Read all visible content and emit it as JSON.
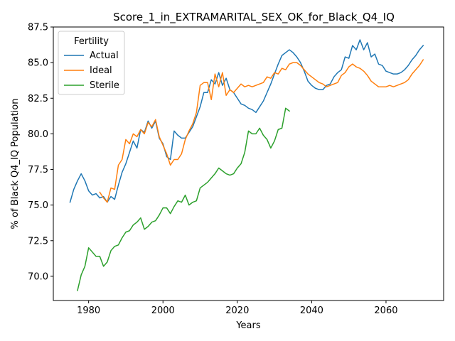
{
  "chart_data": {
    "type": "line",
    "title": "Score_1_in_EXTRAMARITAL_SEX_OK_for_Black_Q4_IQ",
    "xlabel": "Years",
    "ylabel": "% of Black Q4_IQ Population",
    "xlim": [
      1970.5,
      2075.5
    ],
    "ylim": [
      68.3,
      87.5
    ],
    "xticks": [
      1980,
      2000,
      2020,
      2040,
      2060
    ],
    "xtick_labels": [
      "1980",
      "2000",
      "2020",
      "2040",
      "2060"
    ],
    "yticks": [
      70.0,
      72.5,
      75.0,
      77.5,
      80.0,
      82.5,
      85.0,
      87.5
    ],
    "ytick_labels": [
      "70.0",
      "72.5",
      "75.0",
      "77.5",
      "80.0",
      "82.5",
      "85.0",
      "87.5"
    ],
    "grid": false,
    "legend": {
      "title": "Fertility",
      "position": "top-left"
    },
    "series": [
      {
        "name": "Actual",
        "color": "#1f77b4",
        "x": [
          1975,
          1976,
          1977,
          1978,
          1979,
          1980,
          1981,
          1982,
          1983,
          1984,
          1985,
          1986,
          1987,
          1988,
          1989,
          1990,
          1991,
          1992,
          1993,
          1994,
          1995,
          1996,
          1997,
          1998,
          1999,
          2000,
          2001,
          2002,
          2003,
          2004,
          2005,
          2006,
          2007,
          2008,
          2009,
          2010,
          2011,
          2012,
          2013,
          2014,
          2015,
          2016,
          2017,
          2018,
          2019,
          2020,
          2021,
          2022,
          2023,
          2024,
          2025,
          2026,
          2027,
          2028,
          2029,
          2030,
          2031,
          2032,
          2033,
          2034,
          2035,
          2036,
          2037,
          2038,
          2039,
          2040,
          2041,
          2042,
          2043,
          2044,
          2045,
          2046,
          2047,
          2048,
          2049,
          2050,
          2051,
          2052,
          2053,
          2054,
          2055,
          2056,
          2057,
          2058,
          2059,
          2060,
          2061,
          2062,
          2063,
          2064,
          2065,
          2066,
          2067,
          2068,
          2069,
          2070
        ],
        "y": [
          75.2,
          76.1,
          76.7,
          77.2,
          76.7,
          76.0,
          75.7,
          75.8,
          75.5,
          75.6,
          75.2,
          75.6,
          75.4,
          76.4,
          77.3,
          77.9,
          78.7,
          79.5,
          79.0,
          80.3,
          80.1,
          80.9,
          80.4,
          80.9,
          79.7,
          79.3,
          78.4,
          78.2,
          80.2,
          79.9,
          79.7,
          79.7,
          80.1,
          80.5,
          81.2,
          81.9,
          82.9,
          82.9,
          83.8,
          83.5,
          84.3,
          83.4,
          83.9,
          83.1,
          82.9,
          82.5,
          82.1,
          82.0,
          81.8,
          81.7,
          81.5,
          81.9,
          82.3,
          82.9,
          83.5,
          84.2,
          84.9,
          85.5,
          85.7,
          85.9,
          85.7,
          85.4,
          85.0,
          84.4,
          83.7,
          83.4,
          83.2,
          83.1,
          83.1,
          83.4,
          83.5,
          84.0,
          84.3,
          84.5,
          85.4,
          85.3,
          86.2,
          85.9,
          86.6,
          85.9,
          86.4,
          85.4,
          85.6,
          84.9,
          84.8,
          84.4,
          84.3,
          84.2,
          84.2,
          84.3,
          84.5,
          84.8,
          85.2,
          85.5,
          85.9,
          86.2
        ]
      },
      {
        "name": "Ideal",
        "color": "#ff7f0e",
        "x": [
          1983,
          1984,
          1985,
          1986,
          1987,
          1988,
          1989,
          1990,
          1991,
          1992,
          1993,
          1994,
          1995,
          1996,
          1997,
          1998,
          1999,
          2000,
          2001,
          2002,
          2003,
          2004,
          2005,
          2006,
          2007,
          2008,
          2009,
          2010,
          2011,
          2012,
          2013,
          2014,
          2015,
          2016,
          2017,
          2018,
          2019,
          2020,
          2021,
          2022,
          2023,
          2024,
          2025,
          2026,
          2027,
          2028,
          2029,
          2030,
          2031,
          2032,
          2033,
          2034,
          2035,
          2036,
          2037,
          2038,
          2039,
          2040,
          2041,
          2042,
          2043,
          2044,
          2045,
          2046,
          2047,
          2048,
          2049,
          2050,
          2051,
          2052,
          2053,
          2054,
          2055,
          2056,
          2057,
          2058,
          2059,
          2060,
          2061,
          2062,
          2063,
          2064,
          2065,
          2066,
          2067,
          2068,
          2069,
          2070
        ],
        "y": [
          75.9,
          75.5,
          75.2,
          76.2,
          76.1,
          77.8,
          78.2,
          79.6,
          79.3,
          80.0,
          79.8,
          80.3,
          80.0,
          80.8,
          80.5,
          81.0,
          79.8,
          79.2,
          78.6,
          77.8,
          78.2,
          78.2,
          78.6,
          79.6,
          80.2,
          80.7,
          81.5,
          83.4,
          83.6,
          83.6,
          82.4,
          84.2,
          83.3,
          84.3,
          82.7,
          83.1,
          82.9,
          83.2,
          83.5,
          83.3,
          83.4,
          83.3,
          83.4,
          83.5,
          83.6,
          84.0,
          83.9,
          84.3,
          84.2,
          84.6,
          84.5,
          84.9,
          85.0,
          85.0,
          84.8,
          84.5,
          84.2,
          84.0,
          83.8,
          83.6,
          83.5,
          83.3,
          83.4,
          83.5,
          83.6,
          84.1,
          84.3,
          84.7,
          84.9,
          84.7,
          84.6,
          84.4,
          84.1,
          83.7,
          83.5,
          83.3,
          83.3,
          83.3,
          83.4,
          83.3,
          83.4,
          83.5,
          83.6,
          83.8,
          84.2,
          84.5,
          84.8,
          85.2
        ]
      },
      {
        "name": "Sterile",
        "color": "#2ca02c",
        "x": [
          1977,
          1978,
          1979,
          1980,
          1981,
          1982,
          1983,
          1984,
          1985,
          1986,
          1987,
          1988,
          1989,
          1990,
          1991,
          1992,
          1993,
          1994,
          1995,
          1996,
          1997,
          1998,
          1999,
          2000,
          2001,
          2002,
          2003,
          2004,
          2005,
          2006,
          2007,
          2008,
          2009,
          2010,
          2011,
          2012,
          2013,
          2014,
          2015,
          2016,
          2017,
          2018,
          2019,
          2020,
          2021,
          2022,
          2023,
          2024,
          2025,
          2026,
          2027,
          2028,
          2029,
          2030,
          2031,
          2032,
          2033,
          2034
        ],
        "y": [
          69.0,
          70.1,
          70.7,
          72.0,
          71.7,
          71.4,
          71.4,
          70.7,
          71.0,
          71.8,
          72.1,
          72.2,
          72.7,
          73.1,
          73.2,
          73.6,
          73.8,
          74.1,
          73.3,
          73.5,
          73.8,
          73.9,
          74.3,
          74.8,
          74.8,
          74.4,
          74.9,
          75.3,
          75.2,
          75.7,
          75.0,
          75.2,
          75.3,
          76.2,
          76.4,
          76.6,
          76.9,
          77.2,
          77.6,
          77.4,
          77.2,
          77.1,
          77.2,
          77.6,
          77.9,
          78.7,
          80.2,
          80.0,
          80.0,
          80.4,
          79.9,
          79.6,
          79.0,
          79.5,
          80.3,
          80.4,
          81.8,
          81.6
        ]
      }
    ]
  }
}
